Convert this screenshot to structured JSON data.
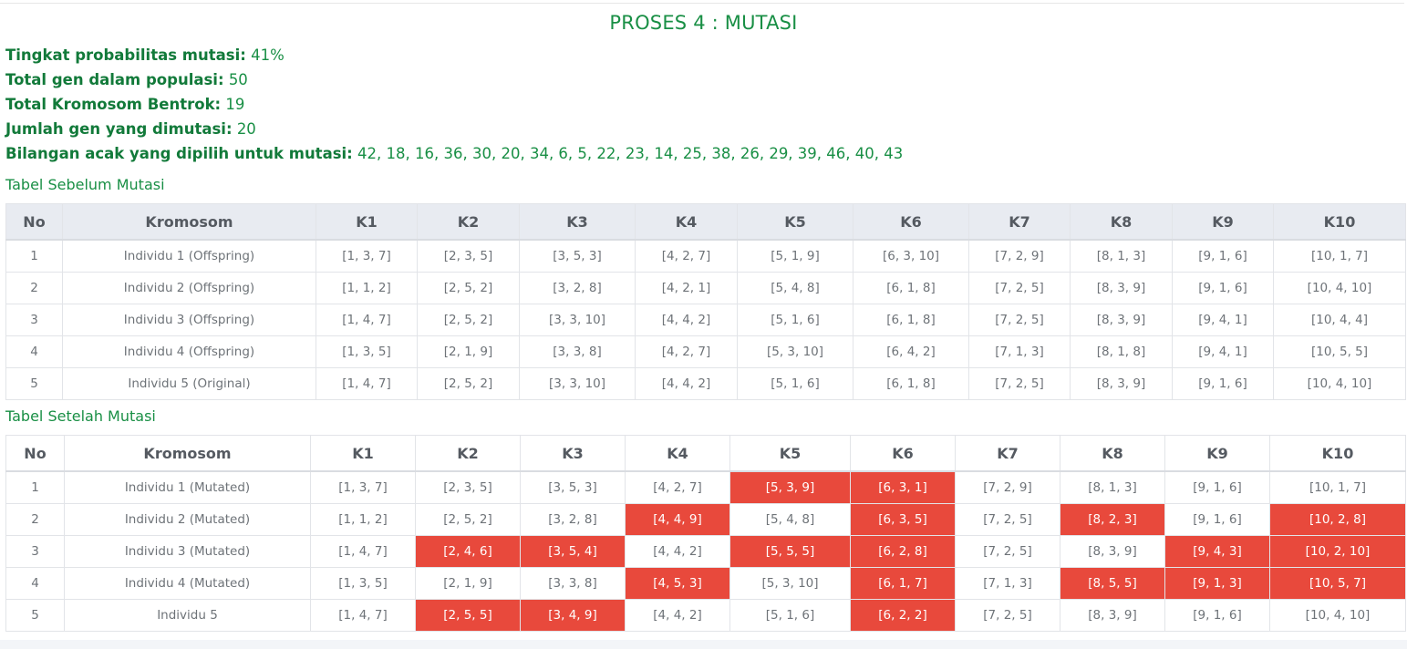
{
  "title": "PROSES 4 : MUTASI",
  "info": [
    {
      "label": "Tingkat probabilitas mutasi:",
      "value": "41%"
    },
    {
      "label": "Total gen dalam populasi:",
      "value": "50"
    },
    {
      "label": "Total Kromosom Bentrok:",
      "value": "19"
    },
    {
      "label": "Jumlah gen yang dimutasi:",
      "value": "20"
    },
    {
      "label": "Bilangan acak yang dipilih untuk mutasi:",
      "value": "42, 18, 16, 36, 30, 20, 34, 6, 5, 22, 23, 14, 25, 38, 26, 29, 39, 46, 40, 43"
    }
  ],
  "colors": {
    "accent": "#198f45",
    "highlight": "#e8493c",
    "header_bg": "#e8ebf1"
  },
  "headers": [
    "No",
    "Kromosom",
    "K1",
    "K2",
    "K3",
    "K4",
    "K5",
    "K6",
    "K7",
    "K8",
    "K9",
    "K10"
  ],
  "before": {
    "title": "Tabel Sebelum Mutasi",
    "rows": [
      {
        "no": "1",
        "name": "Individu 1 (Offspring)",
        "genes": [
          "[1, 3, 7]",
          "[2, 3, 5]",
          "[3, 5, 3]",
          "[4, 2, 7]",
          "[5, 1, 9]",
          "[6, 3, 10]",
          "[7, 2, 9]",
          "[8, 1, 3]",
          "[9, 1, 6]",
          "[10, 1, 7]"
        ]
      },
      {
        "no": "2",
        "name": "Individu 2 (Offspring)",
        "genes": [
          "[1, 1, 2]",
          "[2, 5, 2]",
          "[3, 2, 8]",
          "[4, 2, 1]",
          "[5, 4, 8]",
          "[6, 1, 8]",
          "[7, 2, 5]",
          "[8, 3, 9]",
          "[9, 1, 6]",
          "[10, 4, 10]"
        ]
      },
      {
        "no": "3",
        "name": "Individu 3 (Offspring)",
        "genes": [
          "[1, 4, 7]",
          "[2, 5, 2]",
          "[3, 3, 10]",
          "[4, 4, 2]",
          "[5, 1, 6]",
          "[6, 1, 8]",
          "[7, 2, 5]",
          "[8, 3, 9]",
          "[9, 4, 1]",
          "[10, 4, 4]"
        ]
      },
      {
        "no": "4",
        "name": "Individu 4 (Offspring)",
        "genes": [
          "[1, 3, 5]",
          "[2, 1, 9]",
          "[3, 3, 8]",
          "[4, 2, 7]",
          "[5, 3, 10]",
          "[6, 4, 2]",
          "[7, 1, 3]",
          "[8, 1, 8]",
          "[9, 4, 1]",
          "[10, 5, 5]"
        ]
      },
      {
        "no": "5",
        "name": "Individu 5 (Original)",
        "genes": [
          "[1, 4, 7]",
          "[2, 5, 2]",
          "[3, 3, 10]",
          "[4, 4, 2]",
          "[5, 1, 6]",
          "[6, 1, 8]",
          "[7, 2, 5]",
          "[8, 3, 9]",
          "[9, 1, 6]",
          "[10, 4, 10]"
        ]
      }
    ]
  },
  "after": {
    "title": "Tabel Setelah Mutasi",
    "rows": [
      {
        "no": "1",
        "name": "Individu 1 (Mutated)",
        "genes": [
          "[1, 3, 7]",
          "[2, 3, 5]",
          "[3, 5, 3]",
          "[4, 2, 7]",
          "[5, 3, 9]",
          "[6, 3, 1]",
          "[7, 2, 9]",
          "[8, 1, 3]",
          "[9, 1, 6]",
          "[10, 1, 7]"
        ],
        "mutated": [
          false,
          false,
          false,
          false,
          true,
          true,
          false,
          false,
          false,
          false
        ]
      },
      {
        "no": "2",
        "name": "Individu 2 (Mutated)",
        "genes": [
          "[1, 1, 2]",
          "[2, 5, 2]",
          "[3, 2, 8]",
          "[4, 4, 9]",
          "[5, 4, 8]",
          "[6, 3, 5]",
          "[7, 2, 5]",
          "[8, 2, 3]",
          "[9, 1, 6]",
          "[10, 2, 8]"
        ],
        "mutated": [
          false,
          false,
          false,
          true,
          false,
          true,
          false,
          true,
          false,
          true
        ]
      },
      {
        "no": "3",
        "name": "Individu 3 (Mutated)",
        "genes": [
          "[1, 4, 7]",
          "[2, 4, 6]",
          "[3, 5, 4]",
          "[4, 4, 2]",
          "[5, 5, 5]",
          "[6, 2, 8]",
          "[7, 2, 5]",
          "[8, 3, 9]",
          "[9, 4, 3]",
          "[10, 2, 10]"
        ],
        "mutated": [
          false,
          true,
          true,
          false,
          true,
          true,
          false,
          false,
          true,
          true
        ]
      },
      {
        "no": "4",
        "name": "Individu 4 (Mutated)",
        "genes": [
          "[1, 3, 5]",
          "[2, 1, 9]",
          "[3, 3, 8]",
          "[4, 5, 3]",
          "[5, 3, 10]",
          "[6, 1, 7]",
          "[7, 1, 3]",
          "[8, 5, 5]",
          "[9, 1, 3]",
          "[10, 5, 7]"
        ],
        "mutated": [
          false,
          false,
          false,
          true,
          false,
          true,
          false,
          true,
          true,
          true
        ]
      },
      {
        "no": "5",
        "name": "Individu 5",
        "genes": [
          "[1, 4, 7]",
          "[2, 5, 5]",
          "[3, 4, 9]",
          "[4, 4, 2]",
          "[5, 1, 6]",
          "[6, 2, 2]",
          "[7, 2, 5]",
          "[8, 3, 9]",
          "[9, 1, 6]",
          "[10, 4, 10]"
        ],
        "mutated": [
          false,
          true,
          true,
          false,
          false,
          true,
          false,
          false,
          false,
          false
        ]
      }
    ]
  }
}
